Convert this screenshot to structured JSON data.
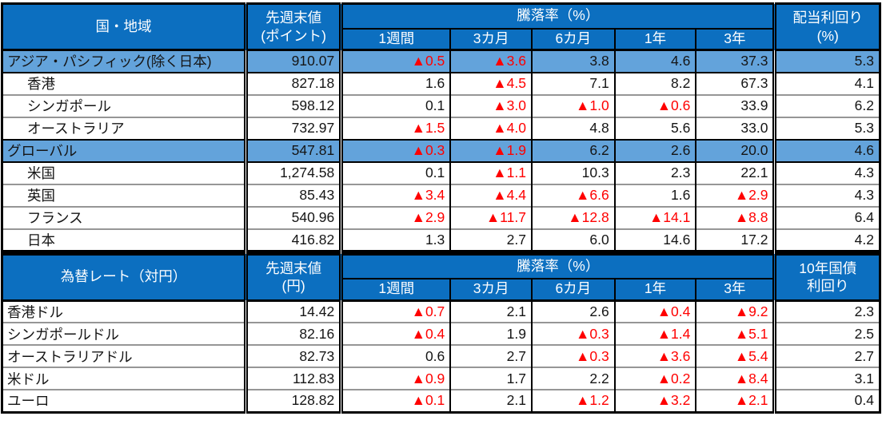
{
  "colors": {
    "header_blue": "#0c6fc0",
    "section_blue": "#63a3db",
    "negative_red": "#ff0000",
    "grid_gray": "#969696",
    "border_black": "#000000"
  },
  "negative_marker": "▲",
  "table1": {
    "header": {
      "label": "国・地域",
      "value_line1": "先週末値",
      "value_line2": "(ポイント)",
      "change_group": "騰落率（%）",
      "periods": [
        "1週間",
        "3カ月",
        "6カ月",
        "1年",
        "3年"
      ],
      "last_line1": "配当利回り",
      "last_line2": "(%)"
    },
    "rows": [
      {
        "label": "アジア・パシフィック(除く日本)",
        "section": true,
        "indent": false,
        "value": "910.07",
        "changes": [
          "▲0.5",
          "▲3.6",
          "3.8",
          "4.6",
          "37.3"
        ],
        "last": "5.3"
      },
      {
        "label": "香港",
        "section": false,
        "indent": true,
        "value": "827.18",
        "changes": [
          "1.6",
          "▲4.5",
          "7.1",
          "8.2",
          "67.3"
        ],
        "last": "4.1"
      },
      {
        "label": "シンガポール",
        "section": false,
        "indent": true,
        "value": "598.12",
        "changes": [
          "0.1",
          "▲3.0",
          "▲1.0",
          "▲0.6",
          "33.9"
        ],
        "last": "6.2"
      },
      {
        "label": "オーストラリア",
        "section": false,
        "indent": true,
        "value": "732.97",
        "changes": [
          "▲1.5",
          "▲4.0",
          "4.8",
          "5.6",
          "33.0"
        ],
        "last": "5.3"
      },
      {
        "label": "グローバル",
        "section": true,
        "indent": false,
        "value": "547.81",
        "changes": [
          "▲0.3",
          "▲1.9",
          "6.2",
          "2.6",
          "20.0"
        ],
        "last": "4.6"
      },
      {
        "label": "米国",
        "section": false,
        "indent": true,
        "value": "1,274.58",
        "changes": [
          "0.1",
          "▲1.1",
          "10.3",
          "2.3",
          "22.1"
        ],
        "last": "4.3"
      },
      {
        "label": "英国",
        "section": false,
        "indent": true,
        "value": "85.43",
        "changes": [
          "▲3.4",
          "▲4.4",
          "▲6.6",
          "1.6",
          "▲2.9"
        ],
        "last": "4.3"
      },
      {
        "label": "フランス",
        "section": false,
        "indent": true,
        "value": "540.96",
        "changes": [
          "▲2.9",
          "▲11.7",
          "▲12.8",
          "▲14.1",
          "▲8.8"
        ],
        "last": "6.4"
      },
      {
        "label": "日本",
        "section": false,
        "indent": true,
        "value": "416.82",
        "changes": [
          "1.3",
          "2.7",
          "6.0",
          "14.6",
          "17.2"
        ],
        "last": "4.2"
      }
    ]
  },
  "table2": {
    "header": {
      "label": "為替レート（対円）",
      "value_line1": "先週末値",
      "value_line2": "(円)",
      "change_group": "騰落率（%）",
      "periods": [
        "1週間",
        "3カ月",
        "6カ月",
        "1年",
        "3年"
      ],
      "last_line1": "10年国債",
      "last_line2": "利回り"
    },
    "rows": [
      {
        "label": "香港ドル",
        "section": false,
        "indent": false,
        "value": "14.42",
        "changes": [
          "▲0.7",
          "2.1",
          "2.6",
          "▲0.4",
          "▲9.2"
        ],
        "last": "2.3"
      },
      {
        "label": "シンガポールドル",
        "section": false,
        "indent": false,
        "value": "82.16",
        "changes": [
          "▲0.4",
          "1.9",
          "▲0.3",
          "▲1.4",
          "▲5.1"
        ],
        "last": "2.5"
      },
      {
        "label": "オーストラリアドル",
        "section": false,
        "indent": false,
        "value": "82.73",
        "changes": [
          "0.6",
          "2.7",
          "▲0.3",
          "▲3.6",
          "▲5.4"
        ],
        "last": "2.7"
      },
      {
        "label": "米ドル",
        "section": false,
        "indent": false,
        "value": "112.83",
        "changes": [
          "▲0.9",
          "1.7",
          "2.2",
          "▲0.2",
          "▲8.4"
        ],
        "last": "3.1"
      },
      {
        "label": "ユーロ",
        "section": false,
        "indent": false,
        "value": "128.82",
        "changes": [
          "▲0.1",
          "2.1",
          "▲1.2",
          "▲3.2",
          "▲2.1"
        ],
        "last": "0.4"
      }
    ]
  }
}
